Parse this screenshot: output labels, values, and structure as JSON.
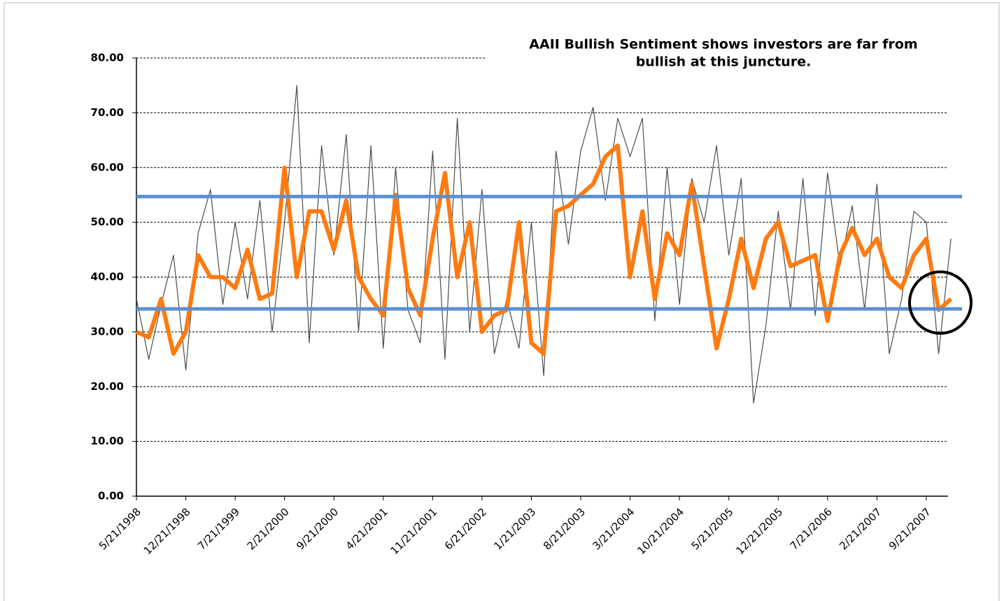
{
  "chart_data": {
    "type": "line",
    "title": [
      "AAII Bullish Sentiment shows investors are far from",
      "bullish at this juncture."
    ],
    "categories": [
      "5/21/1998",
      null,
      null,
      null,
      "12/21/1998",
      null,
      null,
      null,
      "7/21/1999",
      null,
      null,
      null,
      "2/21/2000",
      null,
      null,
      null,
      "9/21/2000",
      null,
      null,
      null,
      "4/21/2001",
      null,
      null,
      null,
      "11/21/2001",
      null,
      null,
      null,
      "6/21/2002",
      null,
      null,
      null,
      "1/21/2003",
      null,
      null,
      null,
      "8/21/2003",
      null,
      null,
      null,
      "3/21/2004",
      null,
      null,
      null,
      "10/21/2004",
      null,
      null,
      null,
      "5/21/2005",
      null,
      null,
      null,
      "12/21/2005",
      null,
      null,
      null,
      "7/21/2006",
      null,
      null,
      null,
      "2/21/2007",
      null,
      null,
      null,
      "9/21/2007",
      null,
      null
    ],
    "series": [
      {
        "color": "#4d4d4d",
        "width": 1.2,
        "values": [
          36,
          25,
          35,
          44,
          23,
          48,
          56,
          35,
          50,
          36,
          54,
          30,
          50,
          75,
          28,
          64,
          44,
          66,
          30,
          64,
          27,
          60,
          34,
          28,
          63,
          25,
          69,
          30,
          56,
          26,
          36,
          27,
          50,
          22,
          63,
          46,
          63,
          71,
          54,
          69,
          62,
          69,
          32,
          60,
          35,
          58,
          50,
          64,
          44,
          58,
          17,
          31,
          52,
          34,
          58,
          33,
          59,
          42,
          53,
          34,
          57,
          26,
          36,
          52,
          50,
          26,
          47
        ]
      },
      {
        "color": "#ff7a10",
        "width": 6,
        "values": [
          30,
          29,
          36,
          26,
          30,
          44,
          40,
          40,
          38,
          45,
          36,
          37,
          60,
          40,
          52,
          52,
          45,
          54,
          40,
          36,
          33,
          55,
          38,
          33,
          47,
          59,
          40,
          50,
          30,
          33,
          34,
          50,
          28,
          26,
          52,
          53,
          55,
          57,
          62,
          64,
          40,
          52,
          36,
          48,
          44,
          57,
          42,
          27,
          36,
          47,
          38,
          47,
          50,
          42,
          43,
          44,
          32,
          44,
          49,
          44,
          47,
          40,
          38,
          44,
          47,
          34,
          36
        ]
      }
    ],
    "reference_lines": [
      {
        "value": 54.7,
        "color": "#5b8fd0"
      },
      {
        "value": 34.2,
        "color": "#5b8fd0"
      }
    ],
    "ylim": [
      0,
      80
    ],
    "yticks": [
      {
        "value": 0,
        "label": "0.00"
      },
      {
        "value": 10,
        "label": "10.00"
      },
      {
        "value": 20,
        "label": "20.00"
      },
      {
        "value": 30,
        "label": "30.00"
      },
      {
        "value": 40,
        "label": "40.00"
      },
      {
        "value": 50,
        "label": "50.00"
      },
      {
        "value": 60,
        "label": "60.00"
      },
      {
        "value": 70,
        "label": "70.00"
      },
      {
        "value": 80,
        "label": "80.00"
      }
    ],
    "grid": true
  }
}
